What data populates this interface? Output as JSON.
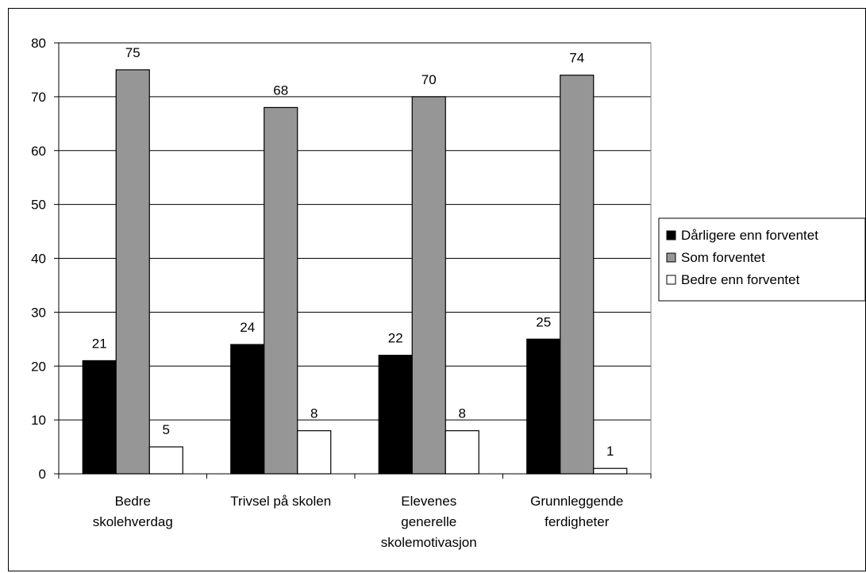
{
  "chart_data": {
    "type": "bar",
    "categories": [
      [
        "Bedre",
        "skolehverdag"
      ],
      [
        "Trivsel på skolen"
      ],
      [
        "Elevenes",
        "generelle",
        "skolemotivasjon"
      ],
      [
        "Grunnleggende",
        "ferdigheter"
      ]
    ],
    "series": [
      {
        "name": "Dårligere enn forventet",
        "values": [
          21,
          24,
          22,
          25
        ],
        "color": "#000000"
      },
      {
        "name": "Som forventet",
        "values": [
          75,
          68,
          70,
          74
        ],
        "color": "#969696"
      },
      {
        "name": "Bedre enn forventet",
        "values": [
          5,
          8,
          8,
          1
        ],
        "color": "#ffffff"
      }
    ],
    "ylim": [
      0,
      80
    ],
    "yticks": [
      0,
      10,
      20,
      30,
      40,
      50,
      60,
      70,
      80
    ],
    "grid": true,
    "legend": "right",
    "data_labels": true
  }
}
